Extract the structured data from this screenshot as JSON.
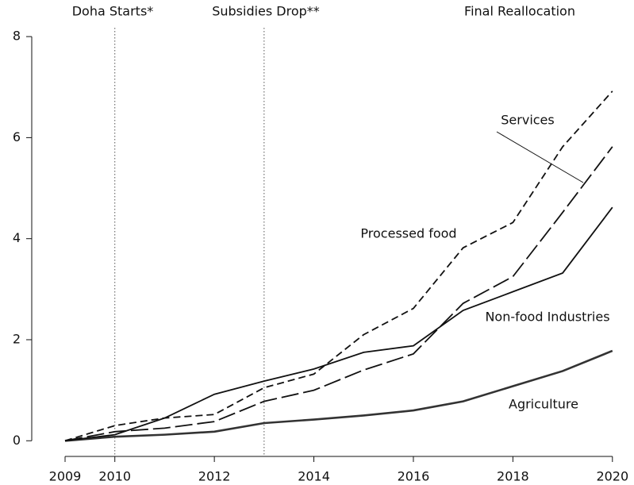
{
  "chart_data": {
    "type": "line",
    "x": [
      2009,
      2010,
      2011,
      2012,
      2013,
      2014,
      2015,
      2016,
      2017,
      2018,
      2019,
      2020
    ],
    "series": [
      {
        "name": "Agriculture",
        "color": "#333333",
        "dash": "solid",
        "values": [
          0,
          0.08,
          0.12,
          0.18,
          0.35,
          0.42,
          0.5,
          0.6,
          0.78,
          1.08,
          1.38,
          1.78
        ]
      },
      {
        "name": "Non-food Industries",
        "color": "#111111",
        "dash": "solid",
        "values": [
          0,
          0.12,
          0.45,
          0.92,
          1.18,
          1.42,
          1.75,
          1.88,
          2.58,
          2.95,
          3.32,
          4.62
        ]
      },
      {
        "name": "Processed food",
        "color": "#111111",
        "dash": "short",
        "values": [
          0,
          0.3,
          0.45,
          0.52,
          1.05,
          1.32,
          2.1,
          2.62,
          3.82,
          4.32,
          5.82,
          6.92
        ]
      },
      {
        "name": "Services",
        "color": "#111111",
        "dash": "long",
        "values": [
          0,
          0.18,
          0.25,
          0.38,
          0.78,
          1.0,
          1.4,
          1.72,
          2.72,
          3.25,
          4.52,
          5.82
        ]
      }
    ],
    "vlines": [
      2010,
      2013
    ],
    "annotations": [
      "Doha Starts*",
      "Subsidies Drop**",
      "Final Reallocation"
    ],
    "xlim": [
      2008.33,
      2020.37
    ],
    "ylim": [
      -0.31,
      8.41
    ],
    "xticks": [
      2009,
      2010,
      2012,
      2014,
      2016,
      2018,
      2020
    ],
    "yticks": [
      0,
      2,
      4,
      6,
      8
    ]
  }
}
